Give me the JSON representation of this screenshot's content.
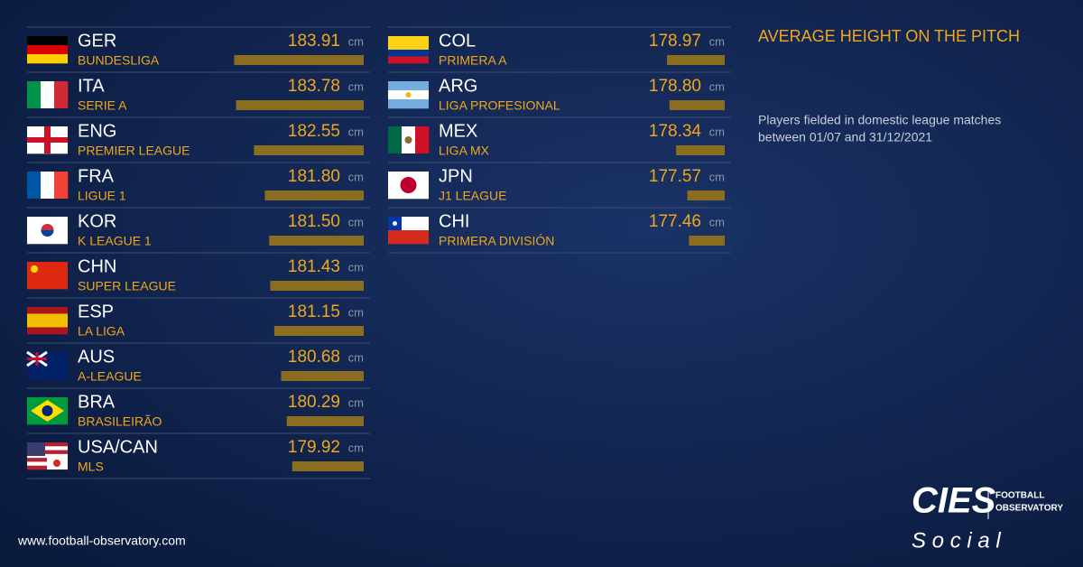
{
  "chart_data": {
    "type": "bar",
    "orientation": "horizontal",
    "title": "AVERAGE HEIGHT ON THE PITCH",
    "subtitle": [
      "Players fielded in domestic league matches",
      "between 01/07 and 31/12/2021"
    ],
    "categories": [
      "GER",
      "ITA",
      "ENG",
      "FRA",
      "KOR",
      "CHN",
      "ESP",
      "AUS",
      "BRA",
      "USA/CAN",
      "COL",
      "ARG",
      "MEX",
      "JPN",
      "CHI"
    ],
    "leagues": [
      "BUNDESLIGA",
      "SERIE A",
      "PREMIER LEAGUE",
      "LIGUE 1",
      "K LEAGUE 1",
      "SUPER LEAGUE",
      "LA LIGA",
      "A-LEAGUE",
      "BRASILEIRÃO",
      "MLS",
      "PRIMERA A",
      "LIGA PROFESIONAL",
      "LIGA MX",
      "J1 LEAGUE",
      "PRIMERA DIVISIÓN"
    ],
    "values": [
      183.91,
      183.78,
      182.55,
      181.8,
      181.5,
      181.43,
      181.15,
      180.68,
      180.29,
      179.92,
      178.97,
      178.8,
      178.34,
      177.57,
      177.46
    ],
    "value_labels": [
      "183.91",
      "183.78",
      "182.55",
      "181.80",
      "181.50",
      "181.43",
      "181.15",
      "180.68",
      "180.29",
      "179.92",
      "178.97",
      "178.80",
      "178.34",
      "177.57",
      "177.46"
    ],
    "unit": "cm",
    "color": "#8a6d1f",
    "xlim": [
      175,
      184
    ]
  },
  "footer": {
    "website": "www.football-observatory.com",
    "logo": "CIES",
    "logo_sub": [
      "FOOTBALL",
      "OBSERVATORY"
    ],
    "tagline": "S o c i a l"
  }
}
